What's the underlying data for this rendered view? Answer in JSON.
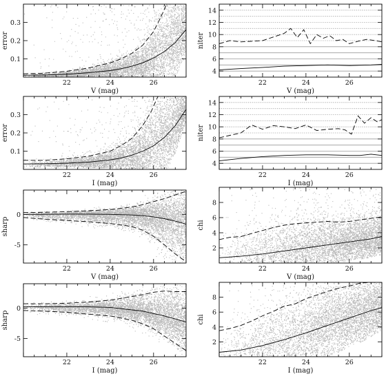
{
  "chart_data": [
    {
      "id": "v-error",
      "type": "scatter",
      "xlabel": "V (mag)",
      "ylabel": "error",
      "xlim": [
        20.0,
        27.5
      ],
      "ylim": [
        0.0,
        0.4
      ],
      "x_ticks": [
        22,
        24,
        26
      ],
      "y_ticks": [
        0.1,
        0.2,
        0.3
      ],
      "cloud": {
        "color": "#b8b8b8"
      },
      "series": [
        {
          "style": "solid",
          "x": [
            20.0,
            21.0,
            22.0,
            23.0,
            24.0,
            24.5,
            25.0,
            25.5,
            26.0,
            26.5,
            27.0,
            27.5
          ],
          "y": [
            0.01,
            0.012,
            0.016,
            0.024,
            0.036,
            0.046,
            0.06,
            0.078,
            0.105,
            0.14,
            0.19,
            0.26
          ]
        },
        {
          "style": "dashed",
          "x": [
            20.0,
            21.0,
            22.0,
            23.0,
            24.0,
            24.5,
            25.0,
            25.5,
            26.0,
            26.3,
            26.6
          ],
          "y": [
            0.018,
            0.022,
            0.032,
            0.05,
            0.078,
            0.1,
            0.13,
            0.175,
            0.25,
            0.32,
            0.4
          ]
        }
      ]
    },
    {
      "id": "v-niter",
      "type": "line",
      "xlabel": "V (mag)",
      "ylabel": "niter",
      "xlim": [
        20.0,
        27.5
      ],
      "ylim": [
        3.0,
        15.0
      ],
      "x_ticks": [
        22,
        24,
        26
      ],
      "y_ticks": [
        4,
        6,
        8,
        10,
        12,
        14
      ],
      "levels": [
        4,
        5,
        6,
        7,
        8,
        9,
        10,
        11,
        12,
        13,
        14
      ],
      "series": [
        {
          "style": "solid",
          "x": [
            20.0,
            21.0,
            22.0,
            23.0,
            24.0,
            25.0,
            26.0,
            27.0,
            27.5
          ],
          "y": [
            4.2,
            4.4,
            4.6,
            4.8,
            4.9,
            5.0,
            4.9,
            5.0,
            5.1
          ]
        },
        {
          "style": "dashed",
          "x": [
            20.0,
            20.5,
            21.0,
            21.5,
            22.0,
            22.5,
            23.0,
            23.3,
            23.6,
            23.9,
            24.2,
            24.5,
            24.8,
            25.1,
            25.4,
            25.7,
            26.0,
            26.4,
            26.8,
            27.2,
            27.5
          ],
          "y": [
            8.5,
            9.0,
            8.8,
            8.9,
            9.0,
            9.6,
            10.2,
            11.0,
            9.5,
            10.8,
            8.5,
            10.0,
            9.4,
            9.8,
            9.0,
            9.2,
            8.5,
            8.9,
            9.2,
            9.0,
            8.8
          ]
        }
      ]
    },
    {
      "id": "i-error",
      "type": "scatter",
      "xlabel": "I (mag)",
      "ylabel": "error",
      "xlim": [
        20.0,
        27.5
      ],
      "ylim": [
        0.0,
        0.4
      ],
      "x_ticks": [
        22,
        24,
        26
      ],
      "y_ticks": [
        0.1,
        0.2,
        0.3
      ],
      "cloud": {
        "color": "#b8b8b8"
      },
      "series": [
        {
          "style": "solid",
          "x": [
            20.0,
            21.0,
            22.0,
            23.0,
            24.0,
            24.5,
            25.0,
            25.5,
            26.0,
            26.5,
            27.0,
            27.5
          ],
          "y": [
            0.03,
            0.031,
            0.034,
            0.04,
            0.052,
            0.062,
            0.078,
            0.1,
            0.13,
            0.175,
            0.24,
            0.33
          ]
        },
        {
          "style": "dashed",
          "x": [
            20.0,
            21.0,
            22.0,
            23.0,
            24.0,
            24.5,
            25.0,
            25.5,
            25.9,
            26.2
          ],
          "y": [
            0.05,
            0.05,
            0.058,
            0.072,
            0.1,
            0.13,
            0.17,
            0.24,
            0.32,
            0.4
          ]
        }
      ]
    },
    {
      "id": "i-niter",
      "type": "line",
      "xlabel": "I (mag)",
      "ylabel": "niter",
      "xlim": [
        20.0,
        27.5
      ],
      "ylim": [
        3.0,
        15.0
      ],
      "x_ticks": [
        22,
        24,
        26
      ],
      "y_ticks": [
        4,
        6,
        8,
        10,
        12,
        14
      ],
      "levels": [
        4,
        5,
        6,
        7,
        8,
        9,
        10,
        11,
        12,
        13,
        14
      ],
      "series": [
        {
          "style": "solid",
          "x": [
            20.0,
            21.0,
            22.0,
            23.0,
            24.0,
            25.0,
            26.0,
            26.5,
            27.0,
            27.5
          ],
          "y": [
            4.4,
            4.8,
            5.1,
            5.3,
            5.4,
            5.4,
            5.3,
            5.3,
            5.5,
            5.3
          ]
        },
        {
          "style": "dashed",
          "x": [
            20.0,
            20.5,
            21.0,
            21.5,
            22.0,
            22.5,
            23.0,
            23.5,
            24.0,
            24.5,
            25.0,
            25.5,
            25.8,
            26.1,
            26.4,
            26.7,
            27.0,
            27.3,
            27.5
          ],
          "y": [
            8.2,
            8.6,
            9.0,
            10.3,
            9.6,
            10.2,
            10.0,
            9.7,
            10.3,
            9.4,
            9.6,
            9.7,
            9.5,
            8.8,
            11.8,
            10.6,
            11.5,
            10.8,
            11.2
          ]
        }
      ]
    },
    {
      "id": "v-sharp",
      "type": "scatter",
      "xlabel": "V (mag)",
      "ylabel": "sharp",
      "xlim": [
        20.0,
        27.5
      ],
      "ylim": [
        -8.0,
        4.0
      ],
      "x_ticks": [
        22,
        24,
        26
      ],
      "y_ticks": [
        -5,
        0
      ],
      "cloud": {
        "color": "#b8b8b8"
      },
      "series": [
        {
          "style": "solid",
          "x": [
            20.0,
            21.0,
            22.0,
            23.0,
            24.0,
            25.0,
            25.5,
            26.0,
            26.5,
            27.0,
            27.5
          ],
          "y": [
            0.0,
            0.02,
            0.05,
            0.05,
            0.0,
            -0.1,
            -0.2,
            -0.4,
            -0.7,
            -1.1,
            -1.6
          ]
        },
        {
          "style": "dashed",
          "x": [
            20.0,
            21.0,
            22.0,
            23.0,
            24.0,
            25.0,
            25.5,
            26.0,
            26.5,
            27.0,
            27.5
          ],
          "y": [
            0.3,
            0.35,
            0.45,
            0.6,
            0.8,
            1.2,
            1.6,
            2.1,
            2.6,
            3.2,
            3.8
          ]
        },
        {
          "style": "dashed",
          "x": [
            20.0,
            21.0,
            22.0,
            23.0,
            24.0,
            25.0,
            25.5,
            26.0,
            26.5,
            27.0,
            27.5
          ],
          "y": [
            -0.5,
            -0.8,
            -1.0,
            -1.2,
            -1.5,
            -2.0,
            -2.6,
            -3.6,
            -5.0,
            -6.5,
            -7.8
          ]
        }
      ]
    },
    {
      "id": "v-chi",
      "type": "scatter",
      "xlabel": "V (mag)",
      "ylabel": "chi",
      "xlim": [
        20.0,
        27.5
      ],
      "ylim": [
        0.0,
        10.0
      ],
      "x_ticks": [
        22,
        24,
        26
      ],
      "y_ticks": [
        2,
        4,
        6,
        8
      ],
      "cloud": {
        "color": "#b8b8b8"
      },
      "series": [
        {
          "style": "solid",
          "x": [
            20.0,
            21.0,
            22.0,
            23.0,
            24.0,
            25.0,
            26.0,
            27.0,
            27.5
          ],
          "y": [
            0.7,
            0.9,
            1.2,
            1.6,
            2.0,
            2.4,
            2.8,
            3.2,
            3.5
          ]
        },
        {
          "style": "dashed",
          "x": [
            20.0,
            20.5,
            21.0,
            21.5,
            22.0,
            22.5,
            23.0,
            23.5,
            24.0,
            24.5,
            25.0,
            25.5,
            26.0,
            26.5,
            27.0,
            27.5
          ],
          "y": [
            3.1,
            3.4,
            3.5,
            3.9,
            4.3,
            4.7,
            5.0,
            5.2,
            5.3,
            5.4,
            5.5,
            5.4,
            5.5,
            5.7,
            5.9,
            6.1
          ]
        }
      ]
    },
    {
      "id": "i-sharp",
      "type": "scatter",
      "xlabel": "I (mag)",
      "ylabel": "sharp",
      "xlim": [
        20.0,
        27.5
      ],
      "ylim": [
        -8.0,
        4.0
      ],
      "x_ticks": [
        22,
        24,
        26
      ],
      "y_ticks": [
        -5,
        0
      ],
      "cloud": {
        "color": "#b8b8b8"
      },
      "series": [
        {
          "style": "solid",
          "x": [
            20.0,
            21.0,
            22.0,
            23.0,
            24.0,
            25.0,
            25.5,
            26.0,
            26.5,
            27.0,
            27.5
          ],
          "y": [
            0.2,
            0.2,
            0.2,
            0.2,
            0.1,
            -0.3,
            -0.5,
            -0.9,
            -1.3,
            -1.8,
            -2.3
          ]
        },
        {
          "style": "dashed",
          "x": [
            20.0,
            21.0,
            22.0,
            23.0,
            24.0,
            24.5,
            25.0,
            25.5,
            26.0,
            26.5,
            27.0,
            27.5
          ],
          "y": [
            0.7,
            0.7,
            0.8,
            1.0,
            1.3,
            1.6,
            1.9,
            2.2,
            2.6,
            2.8,
            2.7,
            2.7
          ]
        },
        {
          "style": "dashed",
          "x": [
            20.0,
            21.0,
            22.0,
            23.0,
            24.0,
            25.0,
            25.5,
            26.0,
            26.5,
            27.0,
            27.5
          ],
          "y": [
            -0.4,
            -0.5,
            -0.7,
            -1.0,
            -1.3,
            -2.0,
            -2.6,
            -3.4,
            -4.6,
            -5.8,
            -7.0
          ]
        }
      ]
    },
    {
      "id": "i-chi",
      "type": "scatter",
      "xlabel": "I (mag)",
      "ylabel": "chi",
      "xlim": [
        20.0,
        27.5
      ],
      "ylim": [
        0.0,
        10.0
      ],
      "x_ticks": [
        22,
        24,
        26
      ],
      "y_ticks": [
        2,
        4,
        6,
        8
      ],
      "cloud": {
        "color": "#b8b8b8"
      },
      "series": [
        {
          "style": "solid",
          "x": [
            20.0,
            21.0,
            22.0,
            23.0,
            24.0,
            25.0,
            26.0,
            27.0,
            27.5
          ],
          "y": [
            0.6,
            0.9,
            1.5,
            2.3,
            3.2,
            4.2,
            5.2,
            6.2,
            6.6
          ]
        },
        {
          "style": "dashed",
          "x": [
            20.0,
            20.5,
            21.0,
            21.5,
            22.0,
            22.5,
            23.0,
            23.5,
            24.0,
            24.5,
            25.0,
            25.5,
            26.0,
            26.5,
            27.0,
            27.5
          ],
          "y": [
            3.5,
            3.8,
            4.2,
            4.8,
            5.5,
            6.1,
            6.8,
            7.1,
            7.8,
            8.3,
            8.8,
            9.2,
            9.5,
            9.9,
            10.0,
            10.0
          ]
        }
      ]
    }
  ]
}
